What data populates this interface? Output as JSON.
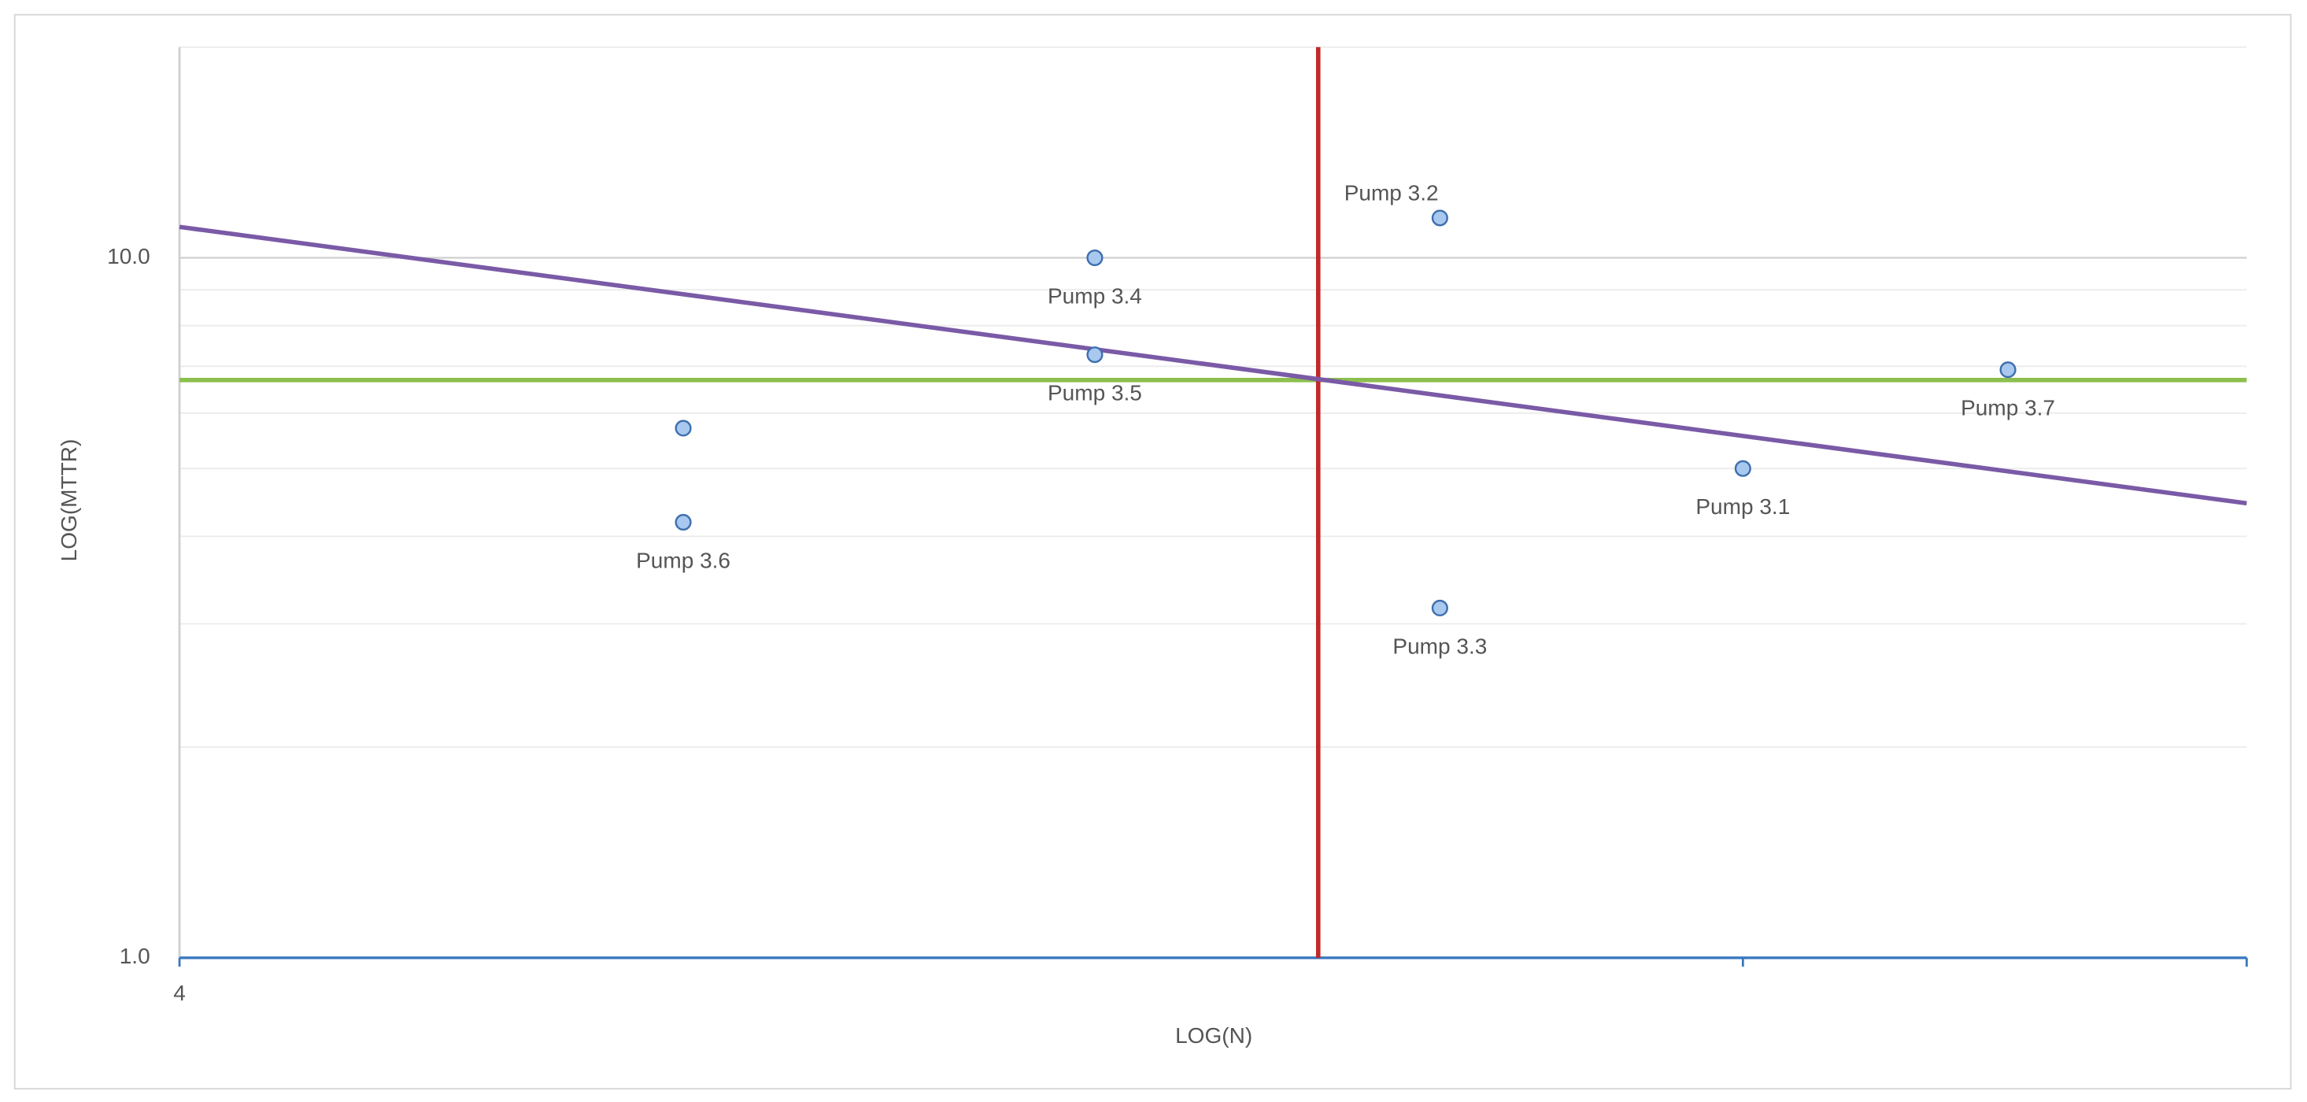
{
  "chart_data": {
    "type": "scatter",
    "x_label": "LOG(N)",
    "y_label": "LOG(MTTR)",
    "x_log": true,
    "y_log": true,
    "xlim": [
      4,
      84
    ],
    "ylim": [
      1,
      20
    ],
    "xticks": [
      4
    ],
    "x_unlabeled_ticks": [
      40
    ],
    "yticks": [
      {
        "value": 1,
        "label": "1.0"
      },
      {
        "value": 10,
        "label": "10.0"
      }
    ],
    "y_minor_grid": [
      2,
      3,
      4,
      5,
      6,
      7,
      8,
      9,
      20
    ],
    "grid": true,
    "series": [
      {
        "color": "#a9c8ef",
        "names": [
          "Pump 3.1",
          "Pump 3.2",
          "Pump 3.3",
          "Pump 3.4",
          "Pump 3.5",
          "Pump 3.6",
          null,
          "Pump 3.7"
        ],
        "x": [
          40,
          25.6,
          25.6,
          15.4,
          15.4,
          8.4,
          8.4,
          59.1
        ],
        "values": [
          5.0,
          11.4,
          3.16,
          10.0,
          7.27,
          4.19,
          5.71,
          6.92
        ]
      }
    ],
    "vertical_line": {
      "x": 21.4,
      "color": "#c0282a"
    },
    "horizontal_line": {
      "y": 6.69,
      "color": "#8cbf4e"
    },
    "trendline": {
      "x": [
        4,
        84
      ],
      "y": [
        11.07,
        4.46
      ],
      "color": "#7a5aa6"
    }
  }
}
